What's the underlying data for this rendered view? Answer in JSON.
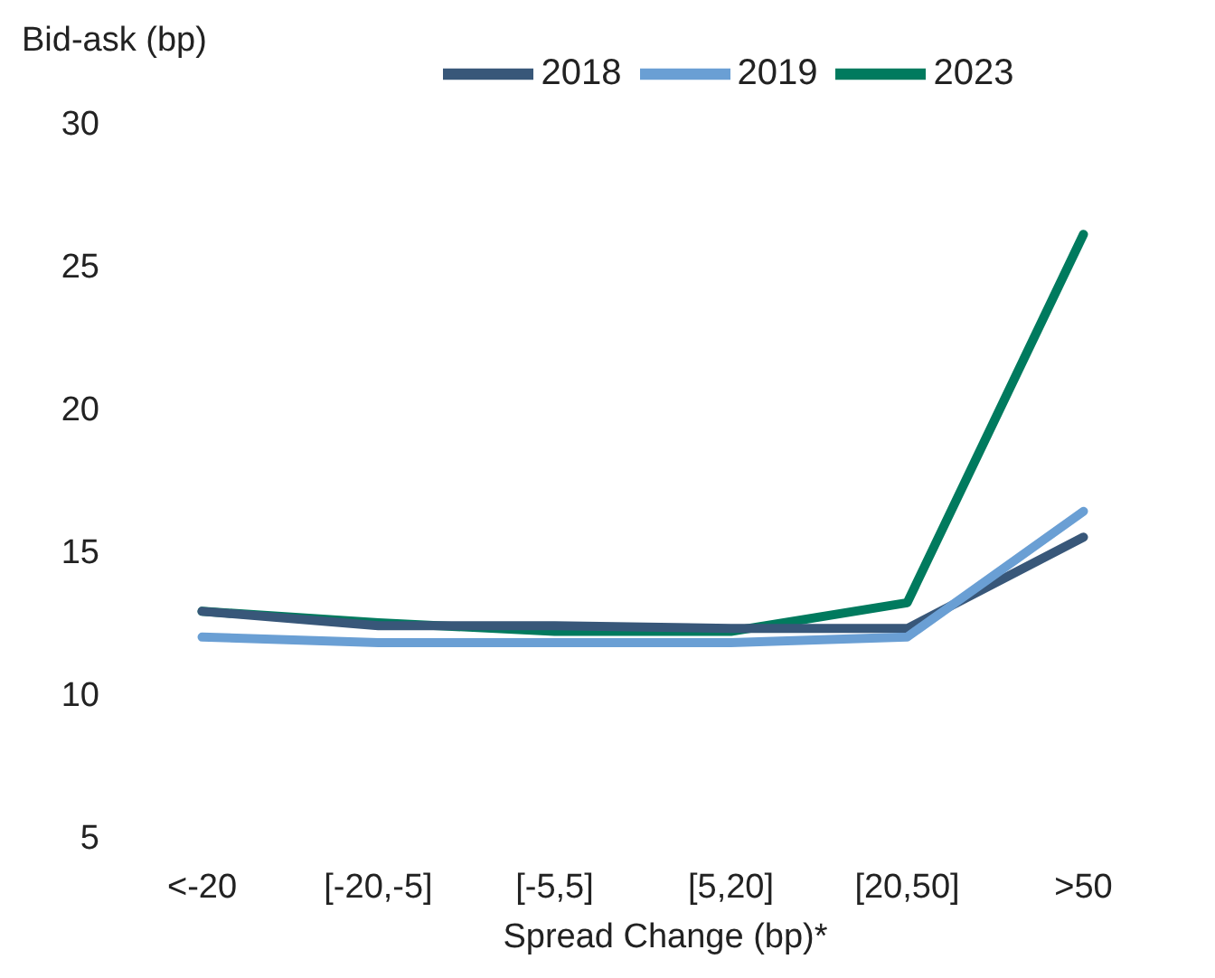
{
  "chart_data": {
    "type": "line",
    "ylabel": "Bid-ask (bp)",
    "xlabel": "Spread Change (bp)*",
    "categories": [
      "<-20",
      "[-20,-5]",
      "[-5,5]",
      "[5,20]",
      "[20,50]",
      ">50"
    ],
    "series": [
      {
        "name": "2023",
        "color": "#007a5e",
        "values": [
          12.9,
          12.5,
          12.2,
          12.2,
          13.2,
          26.1
        ]
      },
      {
        "name": "2018",
        "color": "#385779",
        "values": [
          12.9,
          12.4,
          12.4,
          12.3,
          12.3,
          15.5
        ]
      },
      {
        "name": "2019",
        "color": "#6a9fd4",
        "values": [
          12.0,
          11.8,
          11.8,
          11.8,
          12.0,
          16.4
        ]
      }
    ],
    "ylim": [
      5,
      30
    ],
    "yticks": [
      5,
      10,
      15,
      20,
      25,
      30
    ],
    "grid": false,
    "legend": "top",
    "marker": "none",
    "line_style": "solid"
  }
}
